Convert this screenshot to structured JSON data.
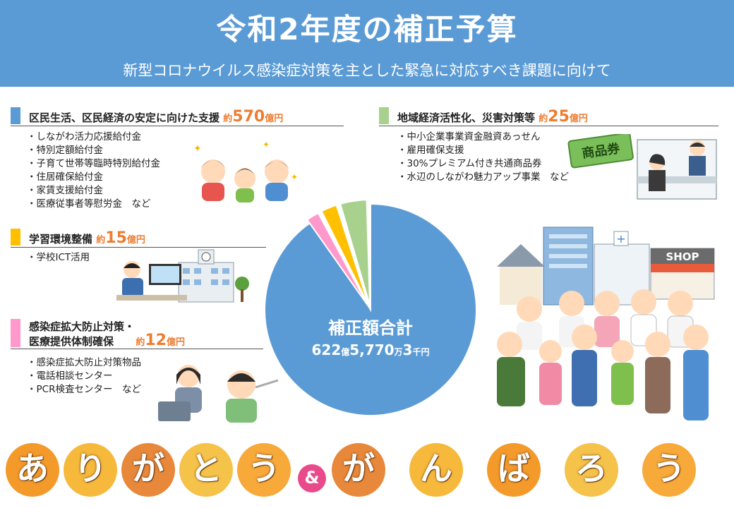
{
  "header": {
    "title": "令和2年度の補正予算",
    "subtitle": "新型コロナウイルス感染症対策を主とした緊急に対応すべき課題に向けて"
  },
  "colors": {
    "header": "#5b9bd5",
    "sec1": "#5b9bd5",
    "sec2": "#a9d18e",
    "sec3": "#ffc000",
    "sec4": "#ff99cc",
    "amount": "#ed7d31"
  },
  "sections": [
    {
      "title": "区民生活、区民経済の安定に向けた支援",
      "amount_prefix": "約",
      "amount_value": "570",
      "amount_unit": "億円",
      "items": [
        "しながわ活力応援給付金",
        "特別定額給付金",
        "子育て世帯等臨時特別給付金",
        "住居確保給付金",
        "家賃支援給付金",
        "医療従事者等慰労金　など"
      ]
    },
    {
      "title": "地域経済活性化、災害対策等",
      "amount_prefix": "約",
      "amount_value": "25",
      "amount_unit": "億円",
      "items": [
        "中小企業事業資金融資あっせん",
        "雇用確保支援",
        "30%プレミアム付き共通商品券",
        "水辺のしながわ魅力アップ事業　など"
      ]
    },
    {
      "title": "学習環境整備",
      "amount_prefix": "約",
      "amount_value": "15",
      "amount_unit": "億円",
      "items": [
        "学校ICT活用"
      ]
    },
    {
      "title_line1": "感染症拡大防止対策・",
      "title_line2": "医療提供体制確保",
      "amount_prefix": "約",
      "amount_value": "12",
      "amount_unit": "億円",
      "items": [
        "感染症拡大防止対策物品",
        "電話相談センター",
        "PCR検査センター　など"
      ]
    }
  ],
  "pie": {
    "center_label": "補正額合計",
    "total_a": "622",
    "total_a_unit": "億",
    "total_b": "5,770",
    "total_b_unit": "万",
    "total_c": "3",
    "total_c_unit": "千円"
  },
  "chart_data": {
    "type": "pie",
    "categories": [
      "区民生活、区民経済の安定に向けた支援",
      "地域経済活性化、災害対策等",
      "学習環境整備",
      "感染症拡大防止対策・医療提供体制確保"
    ],
    "values": [
      570,
      25,
      15,
      12
    ],
    "colors": [
      "#5b9bd5",
      "#a9d18e",
      "#ffc000",
      "#ff99cc"
    ]
  },
  "illustrations": {
    "voucher_text": "商品券",
    "shop_sign": "SHOP"
  },
  "banner": {
    "letters": [
      "あ",
      "り",
      "が",
      "と",
      "う",
      "&",
      "が",
      "ん",
      "ば",
      "ろ",
      "う"
    ],
    "colors": [
      "#f39a2b",
      "#f6b93b",
      "#e8883a",
      "#f5c24a",
      "#f7a93a",
      "#e84a8a",
      "#e8883a",
      "#f6b93b",
      "#f39a2b",
      "#f5c24a",
      "#f7a93a"
    ]
  }
}
